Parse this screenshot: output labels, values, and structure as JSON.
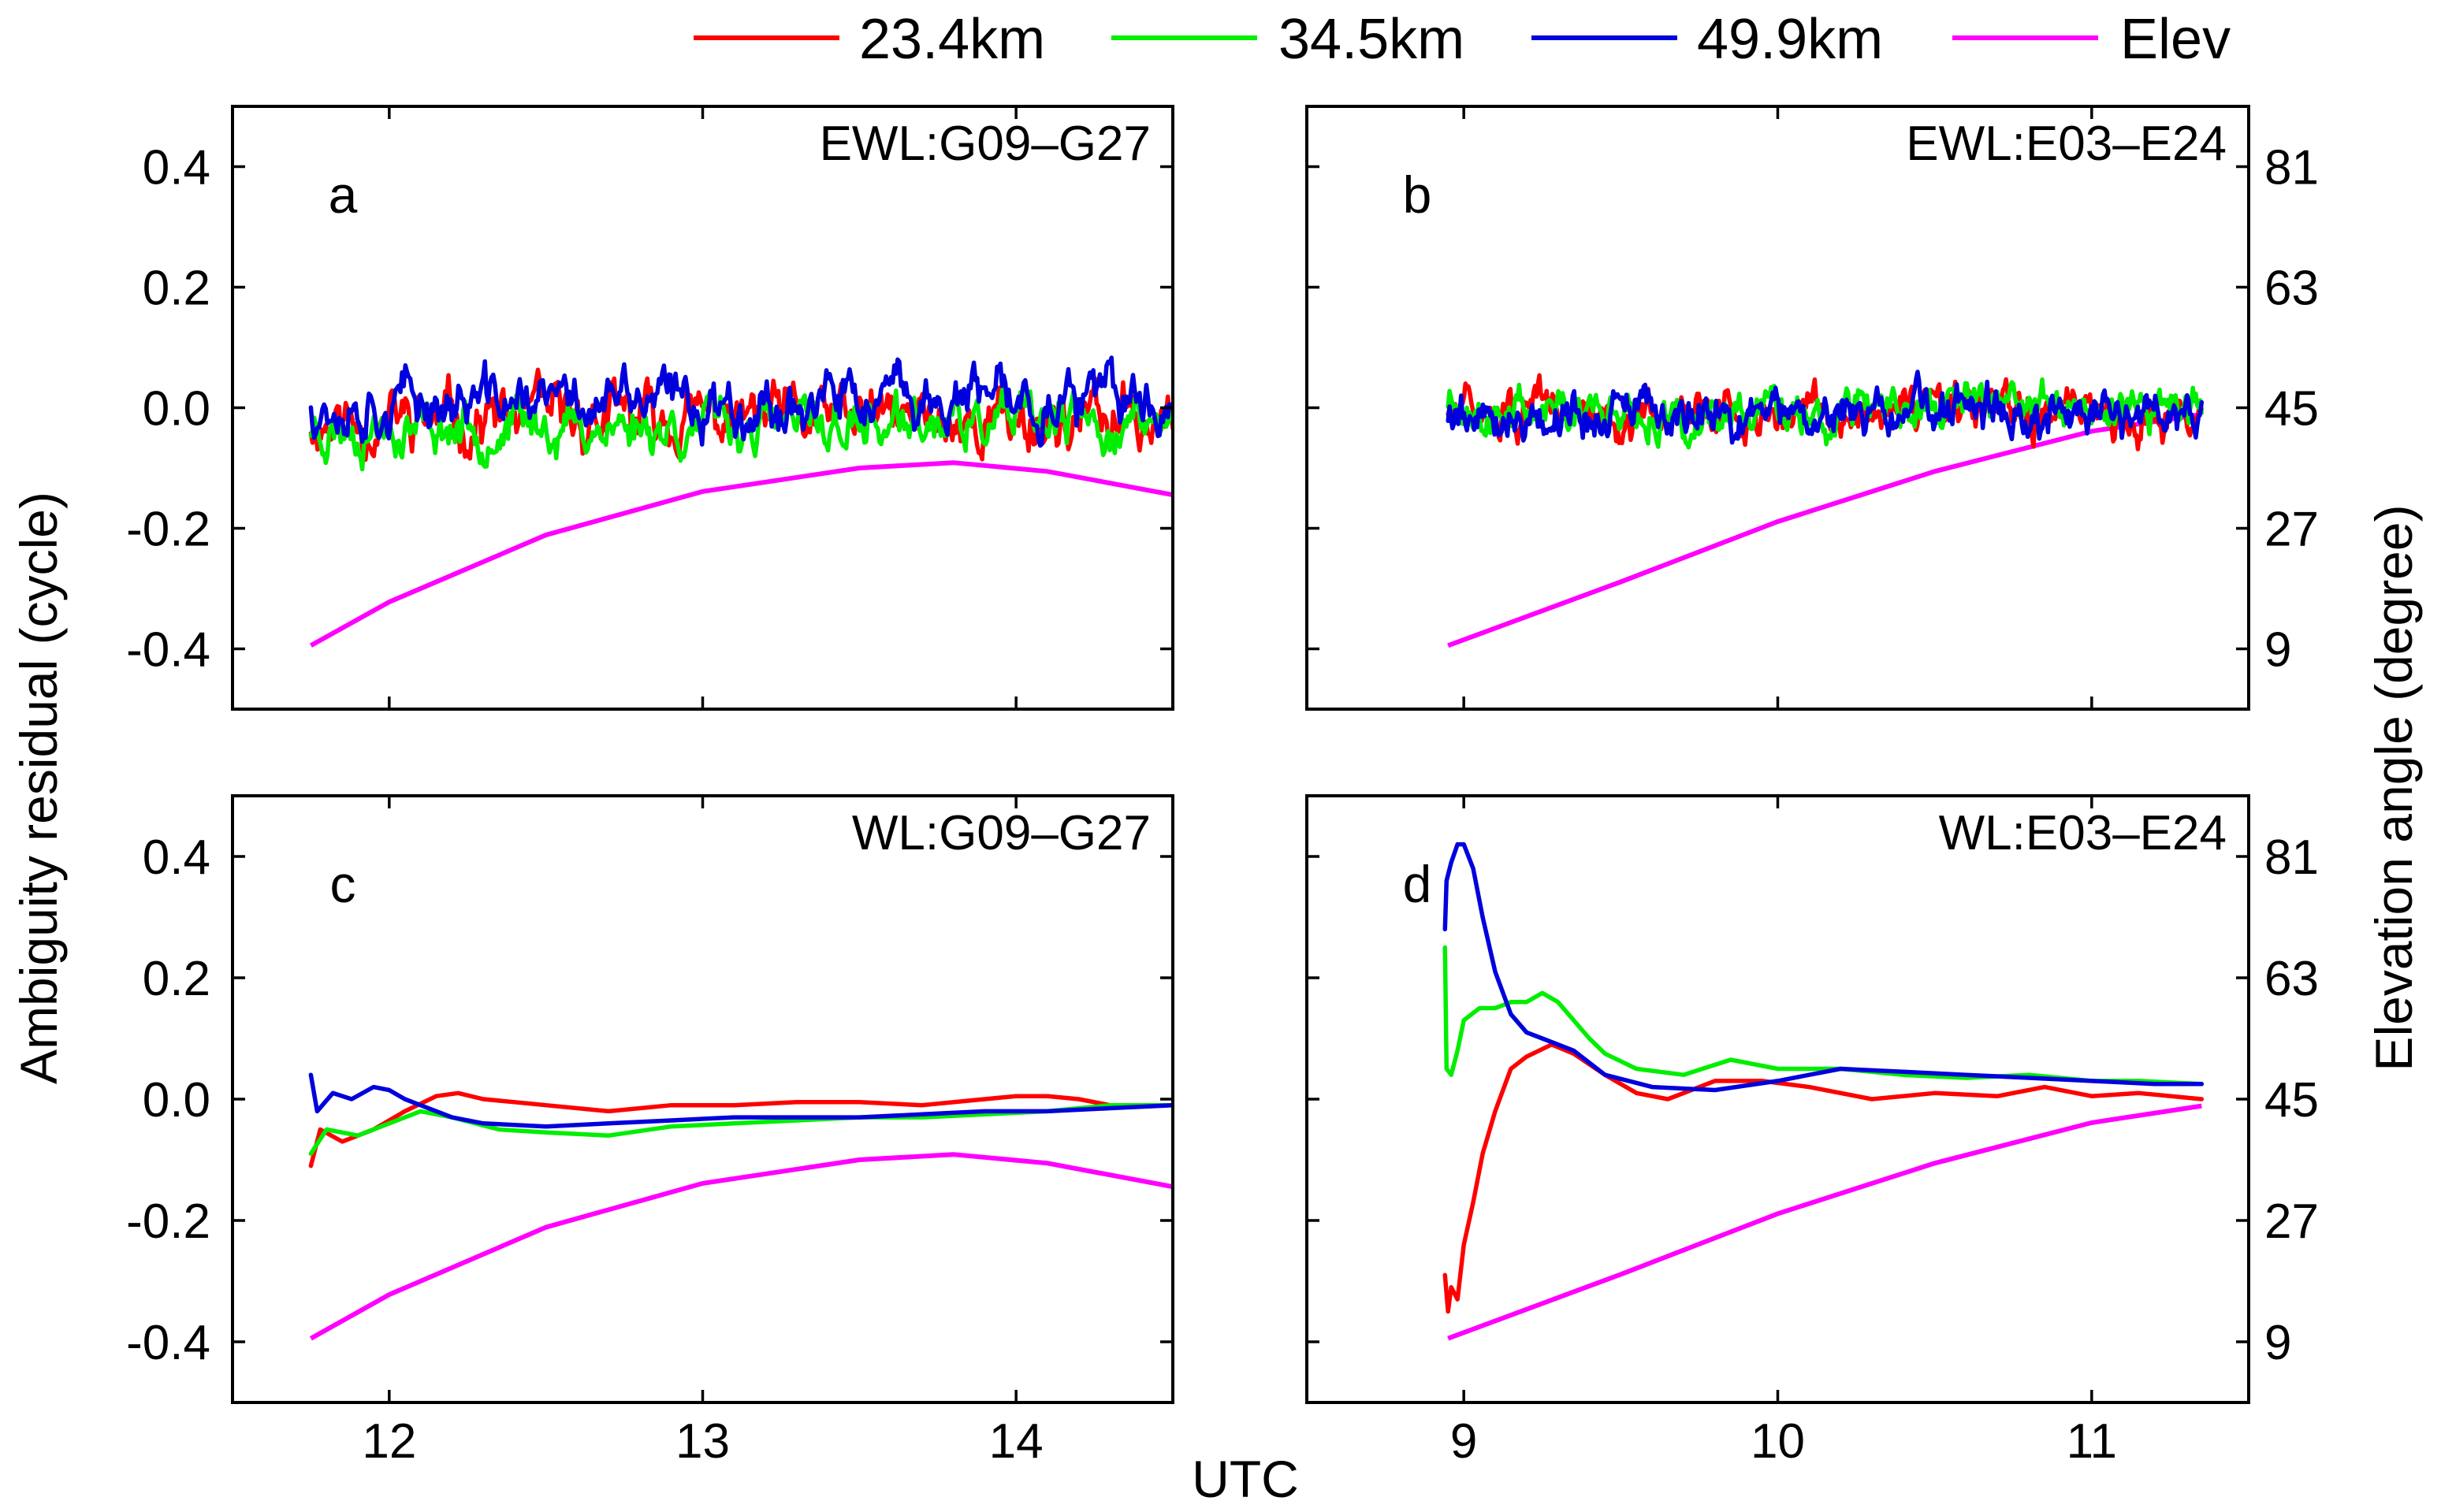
{
  "colors": {
    "s23": "#ff0000",
    "s34": "#00ee00",
    "s49": "#0000dd",
    "elev": "#ff00ff"
  },
  "legend": [
    {
      "label": "23.4km",
      "color_key": "s23"
    },
    {
      "label": "34.5km",
      "color_key": "s34"
    },
    {
      "label": "49.9km",
      "color_key": "s49"
    },
    {
      "label": "Elev",
      "color_key": "elev"
    }
  ],
  "axes": {
    "ylabel_left": "Ambiguity residual (cycle)",
    "ylabel_right": "Elevation angle (degree)",
    "xlabel": "UTC"
  },
  "chart_data": [
    {
      "id": "a",
      "type": "line",
      "letter": "a",
      "title": "EWL:G09–G27",
      "xlim": [
        11.5,
        14.5
      ],
      "ylim": [
        -0.5,
        0.5
      ],
      "ylim_right": [
        0,
        90
      ],
      "xticks": [
        "12",
        "13",
        "14"
      ],
      "yticks": [
        "0.4",
        "0.2",
        "0.0",
        "-0.2",
        "-0.4"
      ],
      "y2ticks": [
        "81",
        "63",
        "45",
        "27",
        "9"
      ],
      "x_tick_labels_shown": false,
      "series": [
        {
          "name": "23.4km",
          "x_range": [
            11.75,
            14.5
          ],
          "mean": -0.02,
          "noise": 0.065,
          "seed": 11
        },
        {
          "name": "34.5km",
          "x_range": [
            11.75,
            14.5
          ],
          "mean": -0.03,
          "noise": 0.055,
          "seed": 23
        },
        {
          "name": "49.9km",
          "x_range": [
            11.75,
            14.5
          ],
          "mean": 0.01,
          "noise": 0.06,
          "seed": 37
        }
      ],
      "elev": {
        "points": [
          [
            11.75,
            9.5
          ],
          [
            12.0,
            16
          ],
          [
            12.5,
            26
          ],
          [
            13.0,
            32.5
          ],
          [
            13.5,
            36
          ],
          [
            13.8,
            36.8
          ],
          [
            14.1,
            35.5
          ],
          [
            14.5,
            32
          ]
        ]
      }
    },
    {
      "id": "b",
      "type": "line",
      "letter": "b",
      "title": "EWL:E03–E24",
      "xlim": [
        8.5,
        11.5
      ],
      "ylim": [
        -0.5,
        0.5
      ],
      "ylim_right": [
        0,
        90
      ],
      "xticks": [
        "9",
        "10",
        "11"
      ],
      "yticks": [
        "0.4",
        "0.2",
        "0.0",
        "-0.2",
        "-0.4"
      ],
      "y2ticks": [
        "81",
        "63",
        "45",
        "27",
        "9"
      ],
      "x_tick_labels_shown": false,
      "series": [
        {
          "name": "23.4km",
          "x_range": [
            8.95,
            11.35
          ],
          "mean": -0.01,
          "noise": 0.05,
          "seed": 51
        },
        {
          "name": "34.5km",
          "x_range": [
            8.95,
            11.35
          ],
          "mean": 0.0,
          "noise": 0.045,
          "seed": 63
        },
        {
          "name": "49.9km",
          "x_range": [
            8.95,
            11.35
          ],
          "mean": -0.01,
          "noise": 0.05,
          "seed": 79
        }
      ],
      "elev": {
        "points": [
          [
            8.95,
            9.5
          ],
          [
            9.5,
            19
          ],
          [
            10.0,
            28
          ],
          [
            10.5,
            35.5
          ],
          [
            11.0,
            41.5
          ],
          [
            11.35,
            44
          ]
        ]
      }
    },
    {
      "id": "c",
      "type": "line",
      "letter": "c",
      "title": "WL:G09–G27",
      "xlim": [
        11.5,
        14.5
      ],
      "ylim": [
        -0.5,
        0.5
      ],
      "ylim_right": [
        0,
        90
      ],
      "xticks": [
        "12",
        "13",
        "14"
      ],
      "yticks": [
        "0.4",
        "0.2",
        "0.0",
        "-0.2",
        "-0.4"
      ],
      "y2ticks": [
        "81",
        "63",
        "45",
        "27",
        "9"
      ],
      "x_tick_labels_shown": true,
      "series": [
        {
          "name": "23.4km",
          "points": [
            [
              11.75,
              -0.11
            ],
            [
              11.78,
              -0.05
            ],
            [
              11.85,
              -0.07
            ],
            [
              11.95,
              -0.05
            ],
            [
              12.05,
              -0.02
            ],
            [
              12.15,
              0.005
            ],
            [
              12.22,
              0.01
            ],
            [
              12.3,
              0.0
            ],
            [
              12.4,
              -0.005
            ],
            [
              12.5,
              -0.01
            ],
            [
              12.7,
              -0.02
            ],
            [
              12.9,
              -0.01
            ],
            [
              13.1,
              -0.01
            ],
            [
              13.3,
              -0.005
            ],
            [
              13.5,
              -0.005
            ],
            [
              13.7,
              -0.01
            ],
            [
              13.9,
              0.0
            ],
            [
              14.0,
              0.005
            ],
            [
              14.1,
              0.005
            ],
            [
              14.2,
              0.0
            ],
            [
              14.3,
              -0.01
            ],
            [
              14.5,
              -0.01
            ]
          ]
        },
        {
          "name": "34.5km",
          "points": [
            [
              11.75,
              -0.09
            ],
            [
              11.8,
              -0.05
            ],
            [
              11.9,
              -0.06
            ],
            [
              12.0,
              -0.04
            ],
            [
              12.1,
              -0.02
            ],
            [
              12.2,
              -0.03
            ],
            [
              12.35,
              -0.05
            ],
            [
              12.5,
              -0.055
            ],
            [
              12.7,
              -0.06
            ],
            [
              12.9,
              -0.045
            ],
            [
              13.1,
              -0.04
            ],
            [
              13.3,
              -0.035
            ],
            [
              13.5,
              -0.03
            ],
            [
              13.7,
              -0.03
            ],
            [
              13.9,
              -0.025
            ],
            [
              14.1,
              -0.02
            ],
            [
              14.3,
              -0.01
            ],
            [
              14.5,
              -0.01
            ]
          ]
        },
        {
          "name": "49.9km",
          "points": [
            [
              11.75,
              0.04
            ],
            [
              11.77,
              -0.02
            ],
            [
              11.82,
              0.01
            ],
            [
              11.88,
              0.0
            ],
            [
              11.95,
              0.02
            ],
            [
              12.0,
              0.015
            ],
            [
              12.05,
              0.0
            ],
            [
              12.1,
              -0.01
            ],
            [
              12.2,
              -0.03
            ],
            [
              12.3,
              -0.04
            ],
            [
              12.5,
              -0.045
            ],
            [
              12.7,
              -0.04
            ],
            [
              12.9,
              -0.035
            ],
            [
              13.1,
              -0.03
            ],
            [
              13.3,
              -0.03
            ],
            [
              13.5,
              -0.03
            ],
            [
              13.7,
              -0.025
            ],
            [
              13.9,
              -0.02
            ],
            [
              14.1,
              -0.02
            ],
            [
              14.3,
              -0.015
            ],
            [
              14.5,
              -0.01
            ]
          ]
        }
      ],
      "elev": {
        "points": [
          [
            11.75,
            9.5
          ],
          [
            12.0,
            16
          ],
          [
            12.5,
            26
          ],
          [
            13.0,
            32.5
          ],
          [
            13.5,
            36
          ],
          [
            13.8,
            36.8
          ],
          [
            14.1,
            35.5
          ],
          [
            14.5,
            32
          ]
        ]
      }
    },
    {
      "id": "d",
      "type": "line",
      "letter": "d",
      "title": "WL:E03–E24",
      "xlim": [
        8.5,
        11.5
      ],
      "ylim": [
        -0.5,
        0.5
      ],
      "ylim_right": [
        0,
        90
      ],
      "xticks": [
        "9",
        "10",
        "11"
      ],
      "yticks": [
        "0.4",
        "0.2",
        "0.0",
        "-0.2",
        "-0.4"
      ],
      "y2ticks": [
        "81",
        "63",
        "45",
        "27",
        "9"
      ],
      "x_tick_labels_shown": true,
      "series": [
        {
          "name": "23.4km",
          "points": [
            [
              8.94,
              -0.29
            ],
            [
              8.95,
              -0.35
            ],
            [
              8.96,
              -0.31
            ],
            [
              8.98,
              -0.33
            ],
            [
              9.0,
              -0.24
            ],
            [
              9.03,
              -0.17
            ],
            [
              9.06,
              -0.09
            ],
            [
              9.1,
              -0.02
            ],
            [
              9.15,
              0.05
            ],
            [
              9.2,
              0.07
            ],
            [
              9.28,
              0.09
            ],
            [
              9.35,
              0.075
            ],
            [
              9.45,
              0.04
            ],
            [
              9.55,
              0.01
            ],
            [
              9.65,
              0.0
            ],
            [
              9.8,
              0.03
            ],
            [
              9.95,
              0.03
            ],
            [
              10.1,
              0.02
            ],
            [
              10.3,
              0.0
            ],
            [
              10.5,
              0.01
            ],
            [
              10.7,
              0.005
            ],
            [
              10.85,
              0.02
            ],
            [
              11.0,
              0.005
            ],
            [
              11.15,
              0.01
            ],
            [
              11.35,
              0.0
            ]
          ]
        },
        {
          "name": "34.5km",
          "points": [
            [
              8.94,
              0.25
            ],
            [
              8.945,
              0.05
            ],
            [
              8.96,
              0.04
            ],
            [
              8.98,
              0.08
            ],
            [
              9.0,
              0.13
            ],
            [
              9.05,
              0.15
            ],
            [
              9.1,
              0.15
            ],
            [
              9.15,
              0.16
            ],
            [
              9.2,
              0.16
            ],
            [
              9.25,
              0.175
            ],
            [
              9.3,
              0.16
            ],
            [
              9.35,
              0.13
            ],
            [
              9.4,
              0.1
            ],
            [
              9.45,
              0.075
            ],
            [
              9.55,
              0.05
            ],
            [
              9.7,
              0.04
            ],
            [
              9.85,
              0.065
            ],
            [
              10.0,
              0.05
            ],
            [
              10.2,
              0.05
            ],
            [
              10.4,
              0.04
            ],
            [
              10.6,
              0.035
            ],
            [
              10.8,
              0.04
            ],
            [
              11.0,
              0.03
            ],
            [
              11.15,
              0.03
            ],
            [
              11.35,
              0.025
            ]
          ]
        },
        {
          "name": "49.9km",
          "points": [
            [
              8.94,
              0.28
            ],
            [
              8.945,
              0.36
            ],
            [
              8.96,
              0.39
            ],
            [
              8.98,
              0.42
            ],
            [
              9.0,
              0.42
            ],
            [
              9.03,
              0.38
            ],
            [
              9.06,
              0.3
            ],
            [
              9.1,
              0.21
            ],
            [
              9.15,
              0.14
            ],
            [
              9.2,
              0.11
            ],
            [
              9.25,
              0.1
            ],
            [
              9.3,
              0.09
            ],
            [
              9.35,
              0.08
            ],
            [
              9.45,
              0.04
            ],
            [
              9.6,
              0.02
            ],
            [
              9.8,
              0.015
            ],
            [
              10.0,
              0.03
            ],
            [
              10.2,
              0.05
            ],
            [
              10.4,
              0.045
            ],
            [
              10.6,
              0.04
            ],
            [
              10.8,
              0.035
            ],
            [
              11.0,
              0.03
            ],
            [
              11.2,
              0.025
            ],
            [
              11.35,
              0.025
            ]
          ]
        }
      ],
      "elev": {
        "points": [
          [
            8.95,
            9.5
          ],
          [
            9.5,
            19
          ],
          [
            10.0,
            28
          ],
          [
            10.5,
            35.5
          ],
          [
            11.0,
            41.5
          ],
          [
            11.35,
            44
          ]
        ]
      }
    }
  ]
}
